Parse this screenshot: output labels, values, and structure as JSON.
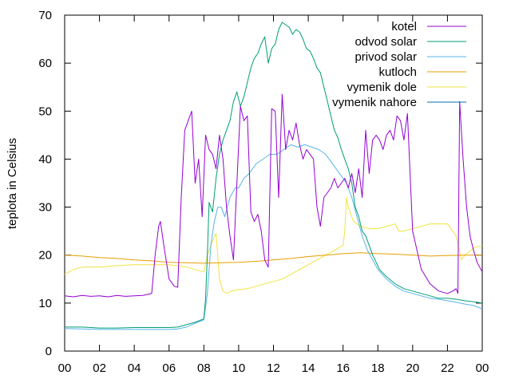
{
  "chart_data": {
    "type": "line",
    "title": "",
    "xlabel": "",
    "ylabel": "teplota in Celsius",
    "xlim": [
      0,
      24
    ],
    "ylim": [
      0,
      70
    ],
    "x_ticks": [
      "00",
      "02",
      "04",
      "06",
      "08",
      "10",
      "12",
      "14",
      "16",
      "18",
      "20",
      "22",
      "00"
    ],
    "y_ticks": [
      0,
      10,
      20,
      30,
      40,
      50,
      60,
      70
    ],
    "grid": false,
    "legend_position": "top-right",
    "series": [
      {
        "name": "kotel",
        "color": "#9400d3",
        "x": [
          0,
          0.5,
          1,
          1.5,
          2,
          2.5,
          3,
          3.5,
          4,
          4.5,
          5,
          5.2,
          5.4,
          5.5,
          5.7,
          6,
          6.3,
          6.5,
          6.7,
          6.9,
          7.1,
          7.3,
          7.5,
          7.7,
          7.9,
          8.1,
          8.3,
          8.5,
          8.7,
          8.9,
          9.1,
          9.3,
          9.5,
          9.7,
          9.9,
          10.1,
          10.3,
          10.5,
          10.7,
          10.9,
          11.1,
          11.3,
          11.5,
          11.7,
          11.9,
          12.1,
          12.3,
          12.5,
          12.7,
          12.9,
          13.1,
          13.3,
          13.5,
          13.7,
          13.9,
          14.1,
          14.3,
          14.5,
          14.7,
          14.9,
          15.1,
          15.3,
          15.5,
          15.7,
          15.9,
          16.1,
          16.3,
          16.5,
          16.7,
          16.9,
          17.1,
          17.3,
          17.5,
          17.7,
          17.9,
          18.1,
          18.3,
          18.5,
          18.7,
          18.9,
          19.1,
          19.3,
          19.5,
          19.7,
          20,
          20.5,
          21,
          21.5,
          22,
          22.3,
          22.5,
          22.6,
          22.7,
          22.9,
          23.1,
          23.3,
          23.5,
          23.7,
          24
        ],
        "values": [
          11.5,
          11.3,
          11.6,
          11.4,
          11.5,
          11.3,
          11.6,
          11.4,
          11.5,
          11.6,
          12,
          20,
          26,
          27,
          22,
          15,
          13.5,
          13.3,
          32,
          46,
          48,
          50,
          35,
          40,
          28,
          45,
          42,
          41,
          38,
          45,
          40,
          30,
          24,
          19,
          35,
          51,
          48,
          49,
          29,
          27,
          28.5,
          25,
          19,
          17.5,
          50.5,
          50,
          32,
          53.5,
          42,
          46,
          44,
          47.5,
          43,
          40,
          42,
          41,
          40,
          30,
          26,
          32,
          33,
          34,
          36,
          34,
          35,
          36,
          34,
          37,
          33,
          38,
          32,
          46,
          37,
          44,
          45,
          44,
          42,
          45,
          46,
          44,
          49,
          48,
          44,
          49.5,
          25,
          17,
          14,
          12.5,
          12,
          12.5,
          13,
          12,
          52,
          40,
          30,
          24,
          21,
          18.5,
          16.5
        ]
      },
      {
        "name": "odvod solar",
        "color": "#009e73",
        "x": [
          0,
          1,
          2,
          3,
          4,
          5,
          6,
          6.5,
          7,
          7.5,
          8,
          8.1,
          8.2,
          8.3,
          8.5,
          8.7,
          8.9,
          9.1,
          9.3,
          9.5,
          9.7,
          9.9,
          10.1,
          10.3,
          10.5,
          10.7,
          10.9,
          11.1,
          11.3,
          11.5,
          11.7,
          11.9,
          12.1,
          12.3,
          12.5,
          12.7,
          12.9,
          13.1,
          13.3,
          13.5,
          13.7,
          13.9,
          14.1,
          14.3,
          14.5,
          14.7,
          14.9,
          15.1,
          15.3,
          15.5,
          15.7,
          15.9,
          16.1,
          16.3,
          16.5,
          16.7,
          16.9,
          17.1,
          17.3,
          17.5,
          17.7,
          17.9,
          18.1,
          18.5,
          19,
          19.5,
          20,
          20.5,
          21,
          21.5,
          22,
          22.5,
          23,
          23.5,
          24
        ],
        "values": [
          5,
          5,
          4.8,
          4.8,
          4.9,
          4.9,
          4.9,
          5,
          5.5,
          6,
          6.7,
          11,
          20,
          31,
          29,
          36,
          41,
          44,
          46,
          48,
          52,
          54,
          51,
          53,
          56,
          59,
          61,
          62,
          64,
          65.5,
          60,
          63,
          64,
          67,
          68.5,
          68,
          67.5,
          66,
          67,
          66.5,
          65,
          63,
          62.5,
          61,
          59,
          58,
          55,
          52,
          49,
          46,
          44.5,
          42,
          40,
          38,
          35,
          30,
          28,
          25,
          24,
          22,
          20,
          18.5,
          17,
          15.5,
          14,
          13,
          12.5,
          12,
          11.5,
          11,
          11,
          10.8,
          10.5,
          10.3,
          10
        ]
      },
      {
        "name": "privod solar",
        "color": "#56b4e9",
        "x": [
          0,
          1,
          2,
          3,
          4,
          5,
          6,
          6.5,
          7,
          7.5,
          8,
          8.2,
          8.4,
          8.6,
          8.8,
          9,
          9.2,
          9.5,
          9.8,
          10,
          10.3,
          10.6,
          11,
          11.4,
          11.8,
          12.2,
          12.6,
          13,
          13.4,
          13.8,
          14.2,
          14.6,
          15,
          15.4,
          15.8,
          16.2,
          16.5,
          16.8,
          17.1,
          17.4,
          17.7,
          18,
          18.5,
          19,
          19.5,
          20,
          20.5,
          21,
          21.5,
          22,
          22.5,
          23,
          23.5,
          24
        ],
        "values": [
          4.7,
          4.6,
          4.5,
          4.5,
          4.5,
          4.5,
          4.5,
          4.6,
          5,
          5.8,
          6.5,
          12,
          22,
          27,
          30,
          30,
          28,
          32,
          34,
          34,
          36,
          37,
          39,
          40,
          41,
          41,
          42,
          43,
          42.5,
          43,
          42.5,
          42,
          41,
          39,
          37,
          35,
          32,
          28,
          24,
          21,
          19,
          17,
          15,
          13.5,
          12.5,
          12,
          11.5,
          11,
          10.8,
          10.5,
          10.2,
          9.8,
          9.5,
          8.8
        ]
      },
      {
        "name": "kutloch",
        "color": "#e69f00",
        "x": [
          0,
          1,
          2,
          3,
          4,
          5,
          6,
          7,
          8,
          9,
          10,
          11,
          12,
          13,
          14,
          15,
          16,
          17,
          18,
          19,
          20,
          21,
          22,
          23,
          24
        ],
        "values": [
          20,
          19.8,
          19.5,
          19.3,
          19,
          18.8,
          18.5,
          18.4,
          18.3,
          18.4,
          18.5,
          18.7,
          19,
          19.3,
          19.7,
          20,
          20.3,
          20.5,
          20.3,
          20.2,
          20,
          19.8,
          19.9,
          20,
          20
        ]
      },
      {
        "name": "vymenik dole",
        "color": "#f0e442",
        "x": [
          0,
          0.5,
          1,
          2,
          3,
          4,
          5,
          6,
          7,
          7.5,
          8,
          8.2,
          8.5,
          8.7,
          8.9,
          9.1,
          9.3,
          9.6,
          10,
          10.5,
          11,
          11.5,
          12,
          12.5,
          13,
          13.5,
          14,
          14.5,
          15,
          15.5,
          16,
          16.1,
          16.2,
          16.3,
          16.6,
          17,
          17.5,
          18,
          18.5,
          19,
          19.2,
          19.5,
          20,
          20.5,
          21,
          21.5,
          22,
          22.5,
          22.8,
          23,
          23.5,
          24
        ],
        "values": [
          16,
          17,
          17.5,
          17.5,
          17.8,
          18,
          18,
          18,
          17.5,
          17,
          16.5,
          20,
          23,
          24.5,
          15,
          12.5,
          12,
          12.5,
          12.8,
          13,
          13.5,
          14,
          14.5,
          15,
          16,
          17,
          18,
          19,
          20,
          21,
          22,
          25,
          32,
          30,
          27,
          26,
          25.5,
          25.5,
          26,
          26.5,
          25,
          25,
          25.5,
          26,
          26.5,
          26.5,
          26.5,
          24,
          19,
          20,
          21.5,
          22
        ]
      },
      {
        "name": "vymenik nahore",
        "color": "#0072b2",
        "x": [],
        "values": []
      }
    ]
  }
}
